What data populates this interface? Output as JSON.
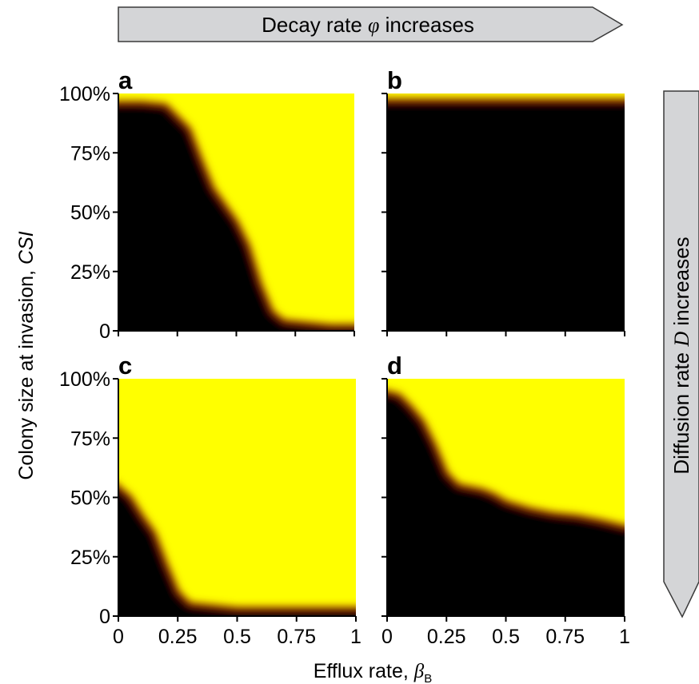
{
  "header_arrow": {
    "prefix": "Decay rate ",
    "symbol": "φ",
    "suffix": " increases"
  },
  "side_arrow": {
    "prefix": "Diffusion rate ",
    "symbol": "D",
    "suffix": " increases"
  },
  "ylabel": {
    "text": "Colony size at invasion, ",
    "italic": "CSI"
  },
  "xlabel": {
    "text": "Efflux rate, ",
    "symbol": "β",
    "subscript": "B"
  },
  "colors": {
    "low": "#000000",
    "mid": "#7a1a00",
    "edge": "#e05a00",
    "high": "#ffff00",
    "arrow_fill": "#d4d5d7",
    "arrow_stroke": "#3a3a3a"
  },
  "chart_data": [
    {
      "panel": "a",
      "type": "heatmap",
      "xlim": [
        0,
        1
      ],
      "ylim": [
        0,
        100
      ],
      "xticks": [
        "0",
        "0.25",
        "0.5",
        "0.75",
        "1"
      ],
      "yticks": [
        "0",
        "25%",
        "50%",
        "75%",
        "100%"
      ],
      "boundary_x": [
        0.0,
        0.1,
        0.2,
        0.3,
        0.35,
        0.4,
        0.45,
        0.5,
        0.55,
        0.6,
        0.65,
        0.7,
        0.8,
        0.9,
        1.0
      ],
      "boundary_y": [
        96,
        96,
        95,
        85,
        72,
        60,
        53,
        46,
        36,
        20,
        8,
        4,
        3,
        2,
        2
      ]
    },
    {
      "panel": "b",
      "type": "heatmap",
      "xlim": [
        0,
        1
      ],
      "ylim": [
        0,
        100
      ],
      "xticks": [
        "0",
        "0.25",
        "0.5",
        "0.75",
        "1"
      ],
      "yticks": [],
      "boundary_x": [
        0.0,
        0.25,
        0.5,
        0.75,
        1.0
      ],
      "boundary_y": [
        97,
        97,
        97,
        97,
        97
      ]
    },
    {
      "panel": "c",
      "type": "heatmap",
      "xlim": [
        0,
        1
      ],
      "ylim": [
        0,
        100
      ],
      "xticks": [
        "0",
        "0.25",
        "0.5",
        "0.75",
        "1"
      ],
      "yticks": [
        "0",
        "25%",
        "50%",
        "75%",
        "100%"
      ],
      "boundary_x": [
        0.0,
        0.05,
        0.1,
        0.15,
        0.2,
        0.25,
        0.3,
        0.4,
        0.5,
        0.75,
        1.0
      ],
      "boundary_y": [
        60,
        50,
        42,
        35,
        22,
        10,
        5,
        4,
        3,
        3,
        3
      ]
    },
    {
      "panel": "d",
      "type": "heatmap",
      "xlim": [
        0,
        1
      ],
      "ylim": [
        0,
        100
      ],
      "xticks": [
        "0",
        "0.25",
        "0.5",
        "0.75",
        "1"
      ],
      "yticks": [],
      "boundary_x": [
        0.0,
        0.05,
        0.1,
        0.15,
        0.2,
        0.25,
        0.3,
        0.35,
        0.4,
        0.45,
        0.5,
        0.6,
        0.7,
        0.8,
        0.9,
        1.0
      ],
      "boundary_y": [
        96,
        93,
        88,
        82,
        72,
        60,
        55,
        54,
        53,
        51,
        48,
        45,
        43,
        42,
        40,
        36
      ]
    }
  ]
}
